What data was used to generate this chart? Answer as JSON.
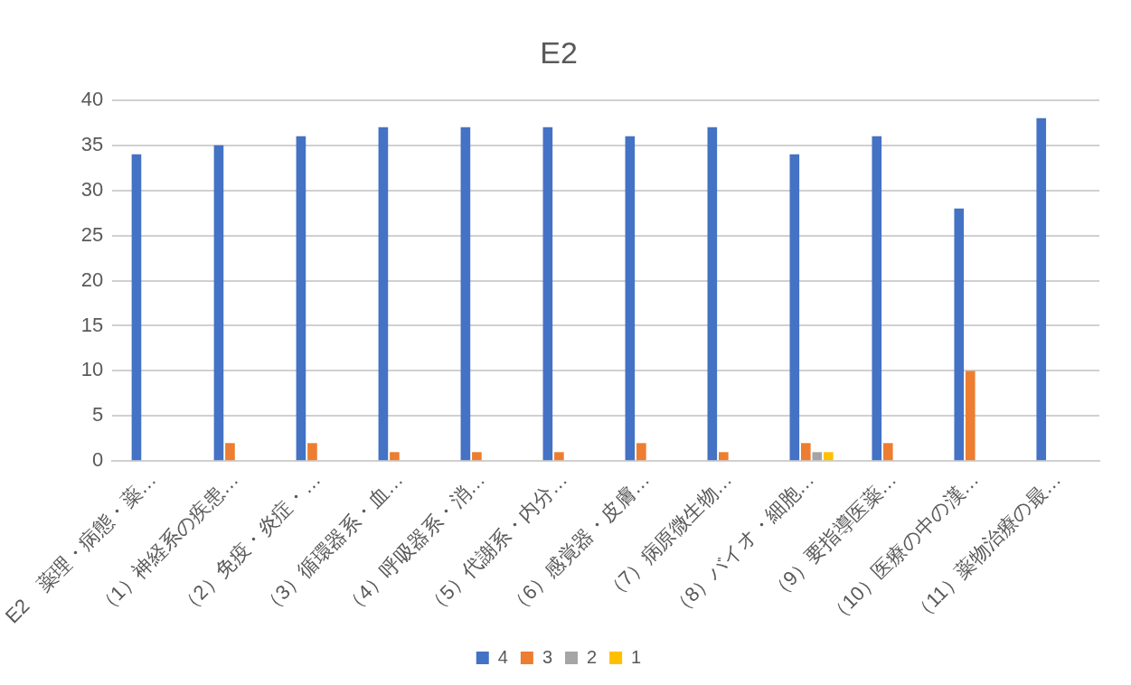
{
  "chart_data": {
    "type": "bar",
    "title": "E2",
    "categories": [
      "E2　薬理・病態・薬…",
      "（1）神経系の疾患…",
      "（2）免疫・炎症・…",
      "（3）循環器系・血…",
      "（4）呼吸器系・消…",
      "（5）代謝系・内分…",
      "（6）感覚器・皮膚…",
      "（7）病原微生物…",
      "（8）バイオ・細胞…",
      "（9）要指導医薬…",
      "（10）医療の中の漢…",
      "（11）薬物治療の最…"
    ],
    "series": [
      {
        "name": "4",
        "color": "#4472c4",
        "values": [
          34,
          35,
          36,
          37,
          37,
          37,
          36,
          37,
          34,
          36,
          28,
          38
        ]
      },
      {
        "name": "3",
        "color": "#ed7d31",
        "values": [
          null,
          2,
          2,
          1,
          1,
          1,
          2,
          1,
          2,
          2,
          10,
          null
        ]
      },
      {
        "name": "2",
        "color": "#a5a5a5",
        "values": [
          null,
          null,
          null,
          null,
          null,
          null,
          null,
          null,
          1,
          null,
          null,
          null
        ]
      },
      {
        "name": "1",
        "color": "#ffc000",
        "values": [
          null,
          null,
          null,
          null,
          null,
          null,
          null,
          null,
          1,
          null,
          null,
          null
        ]
      }
    ],
    "ylim": [
      0,
      40
    ],
    "yticks": [
      0,
      5,
      10,
      15,
      20,
      25,
      30,
      35,
      40
    ],
    "grid": "y",
    "legend": "bottom"
  }
}
